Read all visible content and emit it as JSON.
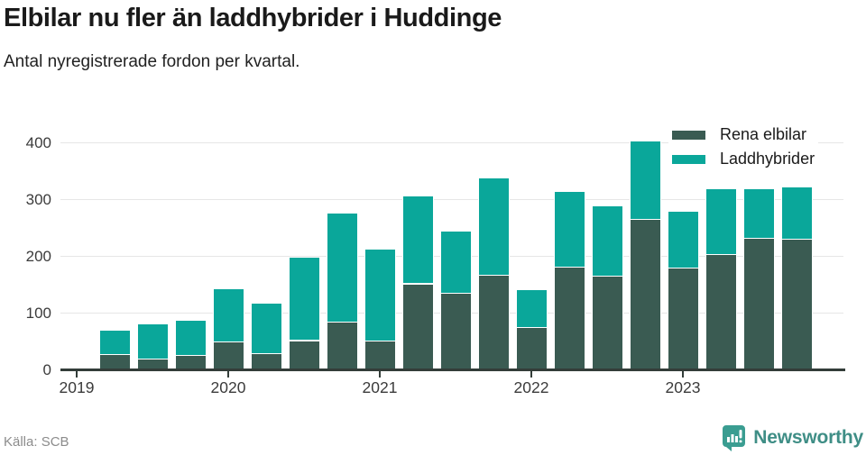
{
  "chart_data": {
    "type": "bar",
    "stacked": true,
    "title": "Elbilar nu fler än laddhybrider i Huddinge",
    "subtitle": "Antal nyregistrerade fordon per kvartal.",
    "x": [
      "2019-Q2",
      "2019-Q3",
      "2019-Q4",
      "2020-Q1",
      "2020-Q2",
      "2020-Q3",
      "2020-Q4",
      "2021-Q1",
      "2021-Q2",
      "2021-Q3",
      "2021-Q4",
      "2022-Q1",
      "2022-Q2",
      "2022-Q3",
      "2022-Q4",
      "2023-Q1",
      "2023-Q2",
      "2023-Q3",
      "2023-Q4"
    ],
    "series": [
      {
        "name": "Rena elbilar",
        "color": "#3a5b52",
        "values": [
          25,
          18,
          24,
          48,
          27,
          50,
          82,
          49,
          150,
          133,
          165,
          73,
          180,
          164,
          264,
          178,
          201,
          230,
          229
        ]
      },
      {
        "name": "Laddhybrider",
        "color": "#0aa79a",
        "values": [
          43,
          62,
          62,
          94,
          89,
          147,
          192,
          162,
          155,
          110,
          171,
          66,
          132,
          124,
          138,
          99,
          117,
          88,
          92
        ]
      }
    ],
    "yticks": [
      0,
      100,
      200,
      300,
      400
    ],
    "xtick_labels": [
      "2019",
      "2020",
      "2021",
      "2022",
      "2023"
    ],
    "ylim": [
      0,
      430
    ],
    "grid": true,
    "legend_position": "top-right"
  },
  "footer": {
    "source": "Källa: SCB",
    "logo_text": "Newsworthy"
  },
  "colors": {
    "axis": "#333d39",
    "grid": "#e6e6e6",
    "title_text": "#1a1a1a",
    "muted_text": "#8c8c8c",
    "logo_bubble": "#3a9d91",
    "logo_text": "#3f8e86"
  }
}
